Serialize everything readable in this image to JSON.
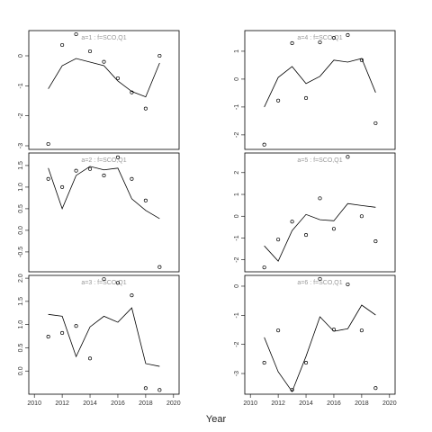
{
  "xlabel": "Year",
  "chart_data": [
    {
      "type": "scatter",
      "title": "a=1 : f=SCO,Q1",
      "x": [
        2011,
        2012,
        2013,
        2014,
        2015,
        2016,
        2017,
        2018,
        2019
      ],
      "xlim": [
        2009.6,
        2020.4
      ],
      "ylim": [
        -3.12,
        0.84
      ],
      "yticks": [
        0,
        -1,
        -2,
        -3
      ],
      "color": "#000000",
      "series": [
        {
          "style": "points",
          "values": [
            -2.94,
            0.36,
            0.72,
            0.15,
            -0.2,
            -0.75,
            -1.22,
            -1.76,
            0
          ]
        },
        {
          "style": "line",
          "values": [
            -1.1,
            -0.33,
            -0.09,
            -0.21,
            -0.33,
            -0.84,
            -1.19,
            -1.37,
            -0.24
          ]
        }
      ]
    },
    {
      "type": "scatter",
      "title": "a=2 : f=SCO,Q1",
      "x": [
        2011,
        2012,
        2013,
        2014,
        2015,
        2016,
        2017,
        2018,
        2019
      ],
      "xlim": [
        2009.6,
        2020.4
      ],
      "ylim": [
        -0.96,
        1.79
      ],
      "yticks": [
        1.5,
        {
          "value": 1,
          "label": "1.0"
        },
        0.5,
        {
          "value": 0,
          "label": "0.0"
        },
        -0.5
      ],
      "color": "#000000",
      "series": [
        {
          "style": "points",
          "values": [
            1.19,
            1.0,
            1.38,
            1.42,
            1.27,
            1.69,
            1.19,
            0.69,
            -0.85
          ]
        },
        {
          "style": "line",
          "values": [
            1.44,
            0.5,
            1.27,
            1.48,
            1.4,
            1.44,
            0.73,
            0.46,
            0.27
          ]
        }
      ]
    },
    {
      "type": "scatter",
      "title": "a=3 : f=SCO,Q1",
      "x": [
        2011,
        2012,
        2013,
        2014,
        2015,
        2016,
        2017,
        2018,
        2019
      ],
      "xlim": [
        2009.6,
        2020.4
      ],
      "xticks": [
        2010,
        2012,
        2014,
        2016,
        2018,
        2020
      ],
      "ylim": [
        -0.5,
        2.06
      ],
      "yticks": [
        {
          "value": 2,
          "label": "2.0"
        },
        1.5,
        {
          "value": 1,
          "label": "1.0"
        },
        0.5,
        {
          "value": 0,
          "label": "0.0"
        }
      ],
      "color": "#000000",
      "series": [
        {
          "style": "points",
          "values": [
            0.74,
            0.82,
            0.97,
            0.27,
            1.98,
            1.9,
            1.63,
            -0.37,
            -0.41
          ]
        },
        {
          "style": "line",
          "values": [
            1.22,
            1.18,
            0.31,
            0.95,
            1.18,
            1.05,
            1.36,
            0.16,
            0.1
          ]
        }
      ]
    },
    {
      "type": "scatter",
      "title": "a=4 : f=SCO,Q1",
      "x": [
        2011,
        2012,
        2013,
        2014,
        2015,
        2016,
        2017,
        2018,
        2019
      ],
      "xlim": [
        2009.6,
        2020.4
      ],
      "ylim": [
        -2.52,
        1.74
      ],
      "yticks": [
        1,
        0,
        -1,
        -2
      ],
      "color": "#000000",
      "series": [
        {
          "style": "points",
          "values": [
            -2.35,
            -0.77,
            1.29,
            -0.68,
            1.32,
            1.48,
            1.58,
            0.68,
            -1.58
          ]
        },
        {
          "style": "line",
          "values": [
            -1.0,
            0.06,
            0.45,
            -0.16,
            0.1,
            0.68,
            0.61,
            0.74,
            -0.48
          ]
        }
      ]
    },
    {
      "type": "scatter",
      "title": "a=5 : f=SCO,Q1",
      "x": [
        2011,
        2012,
        2013,
        2014,
        2015,
        2016,
        2017,
        2018,
        2019
      ],
      "xlim": [
        2009.6,
        2020.4
      ],
      "ylim": [
        -2.55,
        2.9
      ],
      "yticks": [
        2,
        1,
        0,
        -1,
        -2
      ],
      "color": "#000000",
      "series": [
        {
          "style": "points",
          "values": [
            -2.35,
            -1.07,
            -0.25,
            -0.86,
            0.82,
            -0.58,
            2.72,
            0,
            -1.15
          ]
        },
        {
          "style": "line",
          "values": [
            -1.36,
            -2.06,
            -0.66,
            0.08,
            -0.16,
            -0.21,
            0.58,
            0.49,
            0.41
          ]
        }
      ]
    },
    {
      "type": "scatter",
      "title": "a=6 : f=SCO,Q1",
      "x": [
        2011,
        2012,
        2013,
        2014,
        2015,
        2016,
        2017,
        2018,
        2019
      ],
      "xlim": [
        2009.6,
        2020.4
      ],
      "xticks": [
        2010,
        2012,
        2014,
        2016,
        2018,
        2020
      ],
      "ylim": [
        -3.71,
        0.37
      ],
      "yticks": [
        0,
        -1,
        -2,
        -3
      ],
      "color": "#000000",
      "series": [
        {
          "style": "points",
          "values": [
            -2.63,
            -1.52,
            -3.56,
            -2.63,
            0.25,
            -1.49,
            0.06,
            -1.52,
            -3.5
          ]
        },
        {
          "style": "line",
          "values": [
            -1.76,
            -2.94,
            -3.62,
            -2.41,
            -1.05,
            -1.55,
            -1.46,
            -0.65,
            -0.99
          ]
        }
      ]
    }
  ]
}
